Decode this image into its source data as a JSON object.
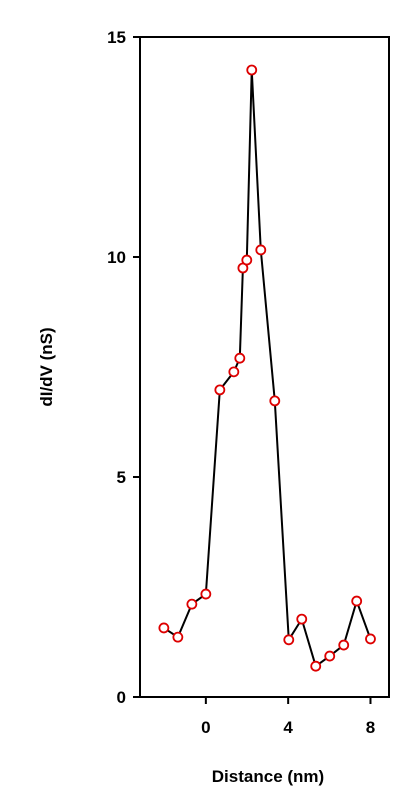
{
  "chart_data": {
    "type": "line",
    "x_label": "Distance (nm)",
    "y_label": "dI/dV (nS)",
    "x": [
      -2.04,
      -1.36,
      -0.68,
      0,
      0.68,
      1.36,
      1.65,
      1.8,
      1.99,
      2.23,
      2.67,
      3.35,
      4.03,
      4.66,
      5.34,
      6.02,
      6.7,
      7.33,
      8.0
    ],
    "series": [
      {
        "color": "#000000",
        "marker_color": "#dd0000",
        "values": [
          1.57,
          1.36,
          2.11,
          2.34,
          6.98,
          7.39,
          7.7,
          9.75,
          9.93,
          14.25,
          10.16,
          6.73,
          1.3,
          1.77,
          0.7,
          0.93,
          1.18,
          2.18,
          1.32
        ]
      }
    ],
    "xlim": [
      -3.2,
      8.9
    ],
    "xticks": [
      0,
      4,
      8
    ],
    "ylim": [
      0,
      15
    ],
    "yticks": [
      0,
      5,
      10,
      15
    ]
  }
}
